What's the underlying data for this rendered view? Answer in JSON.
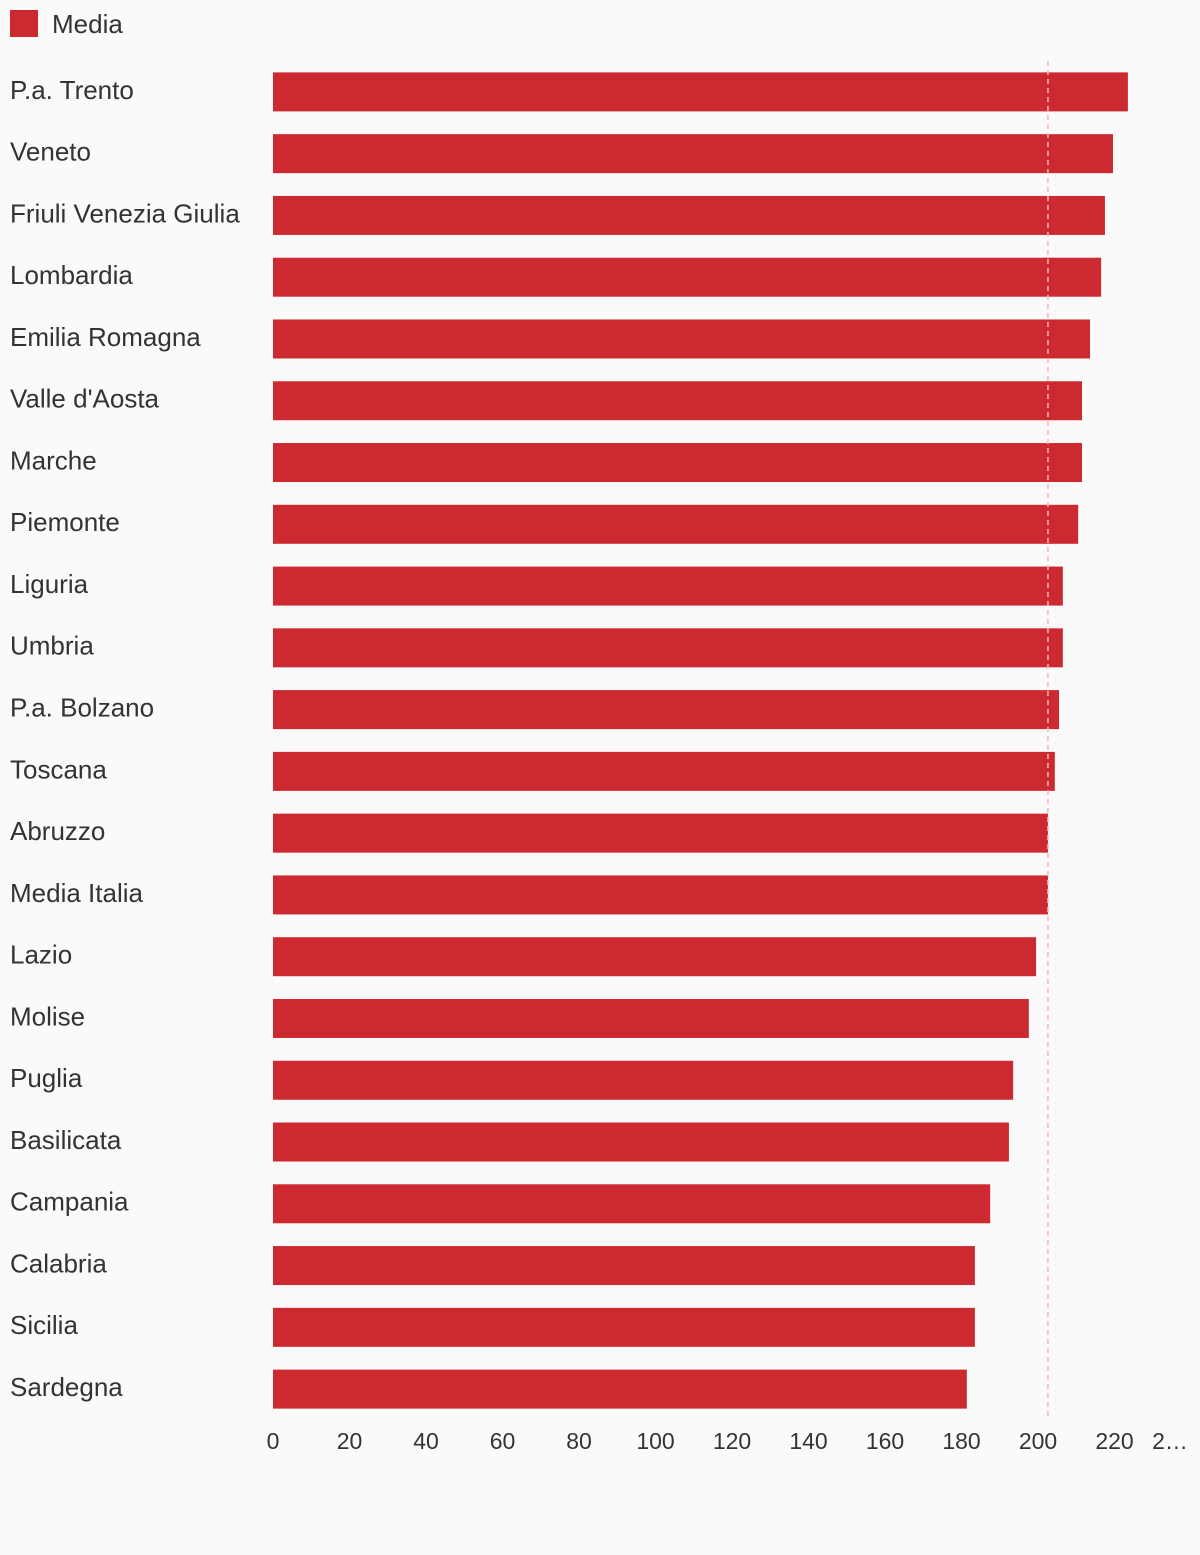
{
  "chart_data": {
    "type": "bar",
    "orientation": "horizontal",
    "categories": [
      "P.a. Trento",
      "Veneto",
      "Friuli Venezia Giulia",
      "Lombardia",
      "Emilia Romagna",
      "Valle d'Aosta",
      "Marche",
      "Piemonte",
      "Liguria",
      "Umbria",
      "P.a. Bolzano",
      "Toscana",
      "Abruzzo",
      "Media Italia",
      "Lazio",
      "Molise",
      "Puglia",
      "Basilicata",
      "Campania",
      "Calabria",
      "Sicilia",
      "Sardegna"
    ],
    "series": [
      {
        "name": "Media",
        "color": "#cc2a30",
        "values": [
          223.5,
          219.6,
          217.5,
          216.5,
          213.6,
          211.5,
          211.5,
          210.5,
          206.5,
          206.5,
          205.5,
          204.4,
          202.6,
          202.6,
          199.5,
          197.6,
          193.5,
          192.4,
          187.5,
          183.5,
          183.5,
          181.4
        ]
      }
    ],
    "xlim": [
      0,
      240
    ],
    "xticks": [
      0,
      20,
      40,
      60,
      80,
      100,
      120,
      140,
      160,
      180,
      200,
      220,
      {
        "value": 240,
        "label": "2…"
      }
    ],
    "reference_value": 202.6,
    "legend": "top-left"
  }
}
